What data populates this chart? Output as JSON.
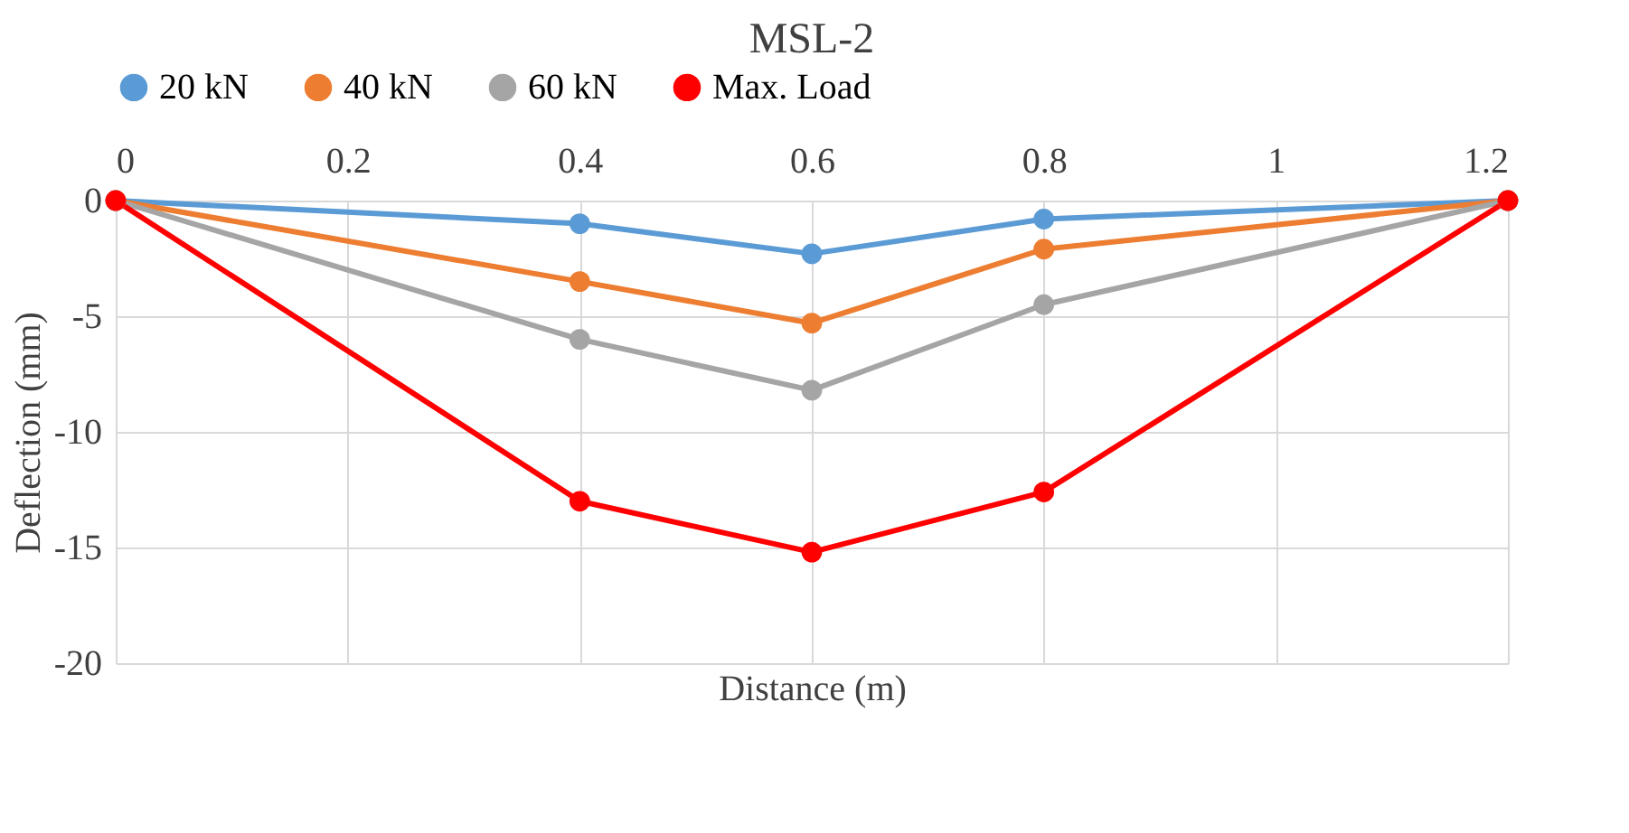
{
  "chart_data": {
    "type": "line",
    "title": "MSL-2",
    "xlabel": "Distance (m)",
    "ylabel": "Deflection (mm)",
    "x": [
      0,
      0.4,
      0.6,
      0.8,
      1.2
    ],
    "series": [
      {
        "name": "20 kN",
        "color": "#5b9bd5",
        "values": [
          0,
          -1.0,
          -2.3,
          -0.8,
          0
        ]
      },
      {
        "name": "40 kN",
        "color": "#ed7d31",
        "values": [
          0,
          -3.5,
          -5.3,
          -2.1,
          0
        ]
      },
      {
        "name": "60 kN",
        "color": "#a5a5a5",
        "values": [
          0,
          -6.0,
          -8.2,
          -4.5,
          0
        ]
      },
      {
        "name": "Max. Load",
        "color": "#ff0000",
        "values": [
          0,
          -13.0,
          -15.2,
          -12.6,
          0
        ]
      }
    ],
    "xlim": [
      0,
      1.2
    ],
    "xticks": [
      0,
      0.2,
      0.4,
      0.6,
      0.8,
      1,
      1.2
    ],
    "ylim": [
      -20,
      0
    ],
    "yticks": [
      -20,
      -15,
      -10,
      -5,
      0
    ],
    "grid": true,
    "legend": "top",
    "marker": "circle",
    "line_style": "solid"
  }
}
